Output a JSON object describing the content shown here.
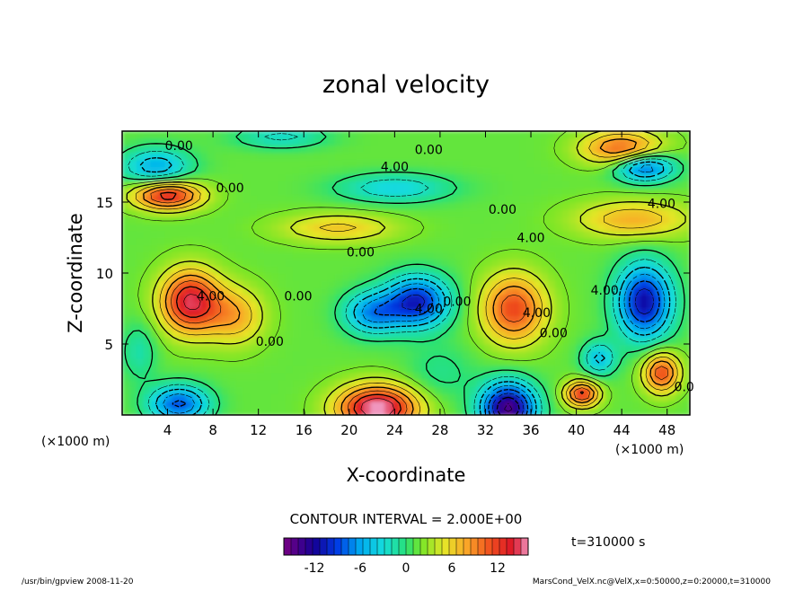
{
  "chart_data": {
    "type": "heatmap",
    "title": "zonal velocity",
    "xlabel": "X-coordinate",
    "ylabel": "Z-coordinate",
    "x_unit": "(×1000 m)",
    "x_unit_right": "(×1000 m)",
    "xlim": [
      0,
      50
    ],
    "ylim": [
      0,
      20
    ],
    "x_ticks": [
      4,
      8,
      12,
      16,
      20,
      24,
      28,
      32,
      36,
      40,
      44,
      48
    ],
    "y_ticks": [
      5,
      10,
      15
    ],
    "contour_interval_text": "CONTOUR INTERVAL = 2.000E+00",
    "time_label": "t=310000 s",
    "colorbar": {
      "min": -16,
      "max": 16,
      "ticks": [
        -12,
        -6,
        0,
        6,
        12
      ]
    },
    "contour_labels": [
      {
        "text": "0.00",
        "x": 5.0,
        "y": 19.0
      },
      {
        "text": "0.00",
        "x": 27.0,
        "y": 18.7
      },
      {
        "text": "4.00",
        "x": 24.0,
        "y": 17.5
      },
      {
        "text": "0.00",
        "x": 9.5,
        "y": 16.0
      },
      {
        "text": "0.00",
        "x": 33.5,
        "y": 14.5
      },
      {
        "text": "4.00",
        "x": 47.5,
        "y": 14.9
      },
      {
        "text": "4.00",
        "x": 36.0,
        "y": 12.5
      },
      {
        "text": "0.00",
        "x": 21.0,
        "y": 11.5
      },
      {
        "text": "4.00",
        "x": 7.8,
        "y": 8.4
      },
      {
        "text": "0.00",
        "x": 15.5,
        "y": 8.4
      },
      {
        "text": "4.00",
        "x": 42.5,
        "y": 8.8
      },
      {
        "text": "0.00",
        "x": 29.5,
        "y": 8.0
      },
      {
        "text": "4.00",
        "x": 27.0,
        "y": 7.5
      },
      {
        "text": "4.00",
        "x": 36.5,
        "y": 7.2
      },
      {
        "text": "0.00",
        "x": 38.0,
        "y": 5.8
      },
      {
        "text": "0.00",
        "x": 13.0,
        "y": 5.2
      },
      {
        "text": "0.0",
        "x": 49.5,
        "y": 2.0
      }
    ],
    "field_features": [
      {
        "x": 6.0,
        "y": 8.0,
        "value": 13,
        "sx": 2.6,
        "sy": 2.2
      },
      {
        "x": 4.0,
        "y": 15.5,
        "value": 12,
        "sx": 3.0,
        "sy": 1.0
      },
      {
        "x": 34.5,
        "y": 7.5,
        "value": 10,
        "sx": 2.8,
        "sy": 2.4
      },
      {
        "x": 22.5,
        "y": 0.5,
        "value": 15,
        "sx": 3.5,
        "sy": 1.6
      },
      {
        "x": 44.0,
        "y": 18.8,
        "value": 9,
        "sx": 3.5,
        "sy": 1.2
      },
      {
        "x": 40.5,
        "y": 1.5,
        "value": 11,
        "sx": 1.5,
        "sy": 0.9
      },
      {
        "x": 47.5,
        "y": 3.0,
        "value": 10,
        "sx": 1.6,
        "sy": 1.4
      },
      {
        "x": 45.0,
        "y": 13.8,
        "value": 6,
        "sx": 5.0,
        "sy": 1.3
      },
      {
        "x": 10.0,
        "y": 7.0,
        "value": 6,
        "sx": 2.5,
        "sy": 2.0
      },
      {
        "x": 19.0,
        "y": 13.2,
        "value": 5,
        "sx": 5.0,
        "sy": 1.0
      },
      {
        "x": 26.0,
        "y": 8.0,
        "value": -12,
        "sx": 2.8,
        "sy": 1.8
      },
      {
        "x": 22.0,
        "y": 7.2,
        "value": -8,
        "sx": 2.5,
        "sy": 1.5
      },
      {
        "x": 46.0,
        "y": 8.0,
        "value": -13,
        "sx": 2.4,
        "sy": 2.6
      },
      {
        "x": 42.0,
        "y": 4.0,
        "value": -6,
        "sx": 1.5,
        "sy": 1.2
      },
      {
        "x": 46.0,
        "y": 17.5,
        "value": -10,
        "sx": 2.6,
        "sy": 1.0
      },
      {
        "x": 3.0,
        "y": 17.5,
        "value": -7,
        "sx": 3.0,
        "sy": 1.3
      },
      {
        "x": 34.0,
        "y": 0.5,
        "value": -16,
        "sx": 2.4,
        "sy": 1.8
      },
      {
        "x": 5.0,
        "y": 0.8,
        "value": -10,
        "sx": 2.6,
        "sy": 1.3
      },
      {
        "x": 24.0,
        "y": 16.0,
        "value": -5,
        "sx": 5.0,
        "sy": 1.0
      },
      {
        "x": 14.0,
        "y": 19.6,
        "value": -4,
        "sx": 4.0,
        "sy": 0.8
      },
      {
        "x": 1.5,
        "y": 4.5,
        "value": -3,
        "sx": 1.5,
        "sy": 2.0
      },
      {
        "x": 28.0,
        "y": 3.0,
        "value": -2,
        "sx": 3.0,
        "sy": 2.0
      }
    ]
  },
  "footer": {
    "left": "/usr/bin/gpview   2008-11-20",
    "right": "MarsCond_VelX.nc@VelX,x=0:50000,z=0:20000,t=310000"
  }
}
